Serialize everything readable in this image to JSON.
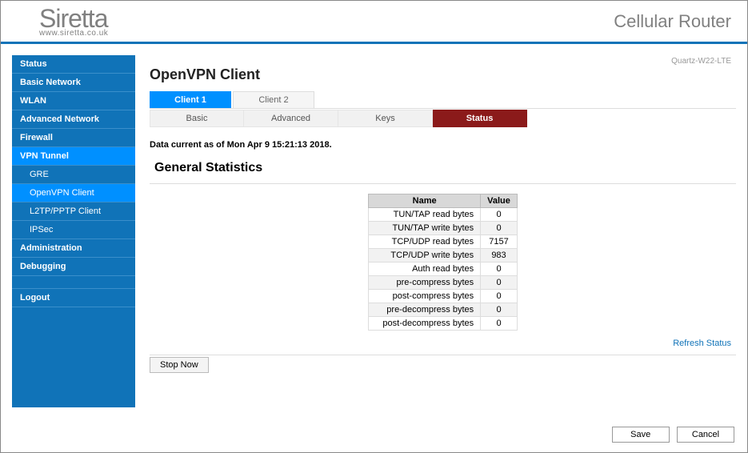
{
  "header": {
    "logo_main": "Siretta",
    "logo_sub": "www.siretta.co.uk",
    "product": "Cellular Router"
  },
  "model": "Quartz-W22-LTE",
  "sidebar": {
    "items": [
      {
        "label": "Status",
        "sub": false,
        "active": false
      },
      {
        "label": "Basic Network",
        "sub": false,
        "active": false
      },
      {
        "label": "WLAN",
        "sub": false,
        "active": false
      },
      {
        "label": "Advanced Network",
        "sub": false,
        "active": false
      },
      {
        "label": "Firewall",
        "sub": false,
        "active": false
      },
      {
        "label": "VPN Tunnel",
        "sub": false,
        "active": true
      },
      {
        "label": "GRE",
        "sub": true,
        "active": false
      },
      {
        "label": "OpenVPN Client",
        "sub": true,
        "active": true
      },
      {
        "label": "L2TP/PPTP Client",
        "sub": true,
        "active": false
      },
      {
        "label": "IPSec",
        "sub": true,
        "active": false
      },
      {
        "label": "Administration",
        "sub": false,
        "active": false
      },
      {
        "label": "Debugging",
        "sub": false,
        "active": false
      }
    ],
    "logout": "Logout"
  },
  "page": {
    "title": "OpenVPN Client",
    "client_tabs": [
      "Client 1",
      "Client 2"
    ],
    "client_tab_active": 0,
    "sub_tabs": [
      "Basic",
      "Advanced",
      "Keys",
      "Status"
    ],
    "sub_tab_active": 3,
    "status_line": "Data current as of Mon Apr 9 15:21:13 2018.",
    "section_title": "General Statistics",
    "stats": {
      "type": "table",
      "columns": [
        "Name",
        "Value"
      ],
      "rows": [
        [
          "TUN/TAP read bytes",
          "0"
        ],
        [
          "TUN/TAP write bytes",
          "0"
        ],
        [
          "TCP/UDP read bytes",
          "7157"
        ],
        [
          "TCP/UDP write bytes",
          "983"
        ],
        [
          "Auth read bytes",
          "0"
        ],
        [
          "pre-compress bytes",
          "0"
        ],
        [
          "post-compress bytes",
          "0"
        ],
        [
          "pre-decompress bytes",
          "0"
        ],
        [
          "post-decompress bytes",
          "0"
        ]
      ],
      "header_bg": "#d8d8d8",
      "row_alt_bg": "#f2f2f2",
      "border_color": "#dddddd"
    },
    "refresh_label": "Refresh Status",
    "stop_label": "Stop Now",
    "save_label": "Save",
    "cancel_label": "Cancel"
  },
  "colors": {
    "brand_blue": "#1073b8",
    "active_blue": "#0090ff",
    "active_red": "#8b1a1a",
    "grey_text": "#808080"
  }
}
